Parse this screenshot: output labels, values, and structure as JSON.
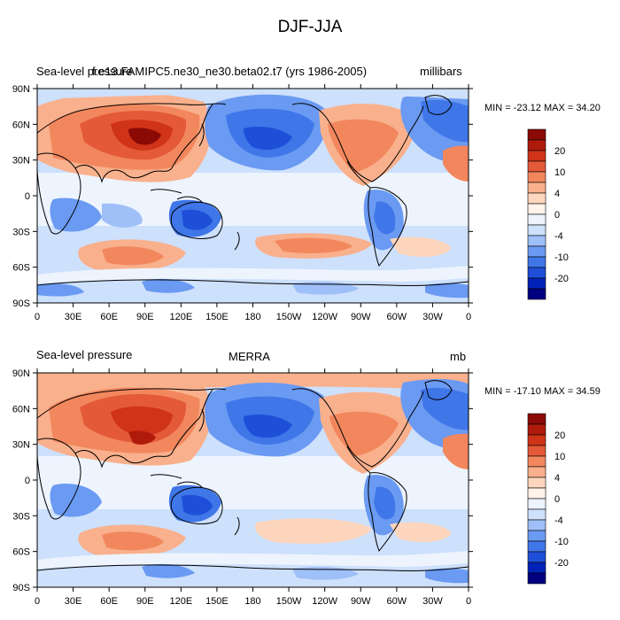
{
  "figure": {
    "title": "DJF-JJA"
  },
  "colors": {
    "levels": [
      "#000080",
      "#0022b8",
      "#1f4fd8",
      "#3f76e8",
      "#6a9af2",
      "#9fbff8",
      "#cde0fc",
      "#edf4fe",
      "#fff3ea",
      "#fdd6bd",
      "#f9b08c",
      "#f2875e",
      "#e45a38",
      "#cf3318",
      "#b01a0b",
      "#8b0a05"
    ],
    "land_outline": "#000000"
  },
  "panels": [
    {
      "id": "model",
      "left_title": "Sea-level pressure",
      "center_title": "f.e13.FAMIPC5.ne30_ne30.beta02.t7 (yrs 1986-2005)",
      "units": "millibars",
      "stats": "MIN = -23.12 MAX =  34.20",
      "colorbar_labels": [
        "20",
        "10",
        "4",
        "0",
        "-4",
        "-10",
        "-20"
      ],
      "lat_labels": [
        "90N",
        "60N",
        "30N",
        "0",
        "30S",
        "60S",
        "90S"
      ],
      "lon_labels": [
        "0",
        "30E",
        "60E",
        "90E",
        "120E",
        "150E",
        "180",
        "150W",
        "120W",
        "90W",
        "60W",
        "30W",
        "0"
      ]
    },
    {
      "id": "obs",
      "left_title": "Sea-level pressure",
      "center_title": "MERRA",
      "units": "mb",
      "stats": "MIN = -17.10 MAX =  34.59",
      "colorbar_labels": [
        "20",
        "10",
        "4",
        "0",
        "-4",
        "-10",
        "-20"
      ],
      "lat_labels": [
        "90N",
        "60N",
        "30N",
        "0",
        "30S",
        "60S",
        "90S"
      ],
      "lon_labels": [
        "0",
        "30E",
        "60E",
        "90E",
        "120E",
        "150E",
        "180",
        "150W",
        "120W",
        "90W",
        "60W",
        "30W",
        "0"
      ]
    }
  ]
}
